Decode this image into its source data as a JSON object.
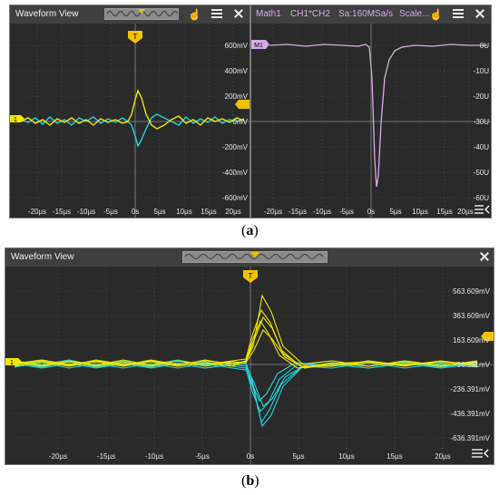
{
  "figure_a": {
    "caption_open": "(",
    "caption_letter": "a",
    "caption_close": ")",
    "left_panel": {
      "title": "Waveform View",
      "trigger_label": "T",
      "channel1_label": "1",
      "y_ticks": [
        "600mV",
        "400mV",
        "200mV",
        "0mV",
        "-200mV",
        "-400mV",
        "-600mV"
      ],
      "x_ticks": [
        "-20µs",
        "-15µs",
        "-10µs",
        "-5µs",
        "0s",
        "5µs",
        "10µs",
        "15µs",
        "20µs"
      ]
    },
    "right_panel": {
      "header_items": [
        "Math1",
        "CH1*CH2",
        "Sa:160MSa/s",
        "Scale..."
      ],
      "math_label": "M1",
      "y_ticks": [
        "0U",
        "-10U",
        "-20U",
        "-30U",
        "-40U",
        "-50U",
        "-60U"
      ],
      "x_ticks": [
        "-20µs",
        "-15µs",
        "-10µs",
        "-5µs",
        "0s",
        "5µs",
        "10µs",
        "15µs",
        "20µs"
      ]
    }
  },
  "figure_b": {
    "caption_open": "(",
    "caption_letter": "b",
    "caption_close": ")",
    "title": "Waveform View",
    "trigger_label": "T",
    "channel1_label": "1",
    "y_ticks": [
      "563.609mV",
      "363.609mV",
      "163.609mV",
      "-36.391mV",
      "-236.391mV",
      "-436.391mV",
      "-636.391mV"
    ],
    "x_ticks": [
      "-20µs",
      "-15µs",
      "-10µs",
      "-5µs",
      "0s",
      "5µs",
      "10µs",
      "15µs",
      "20µs"
    ]
  },
  "colors": {
    "ch1": "#f2e600",
    "ch2": "#22d4e0",
    "math": "#d9a9ea",
    "trigger": "#f2c200",
    "grid": "#5a5a5a",
    "background": "#2a2a2a",
    "tick_text": "#e6e6e6"
  }
}
